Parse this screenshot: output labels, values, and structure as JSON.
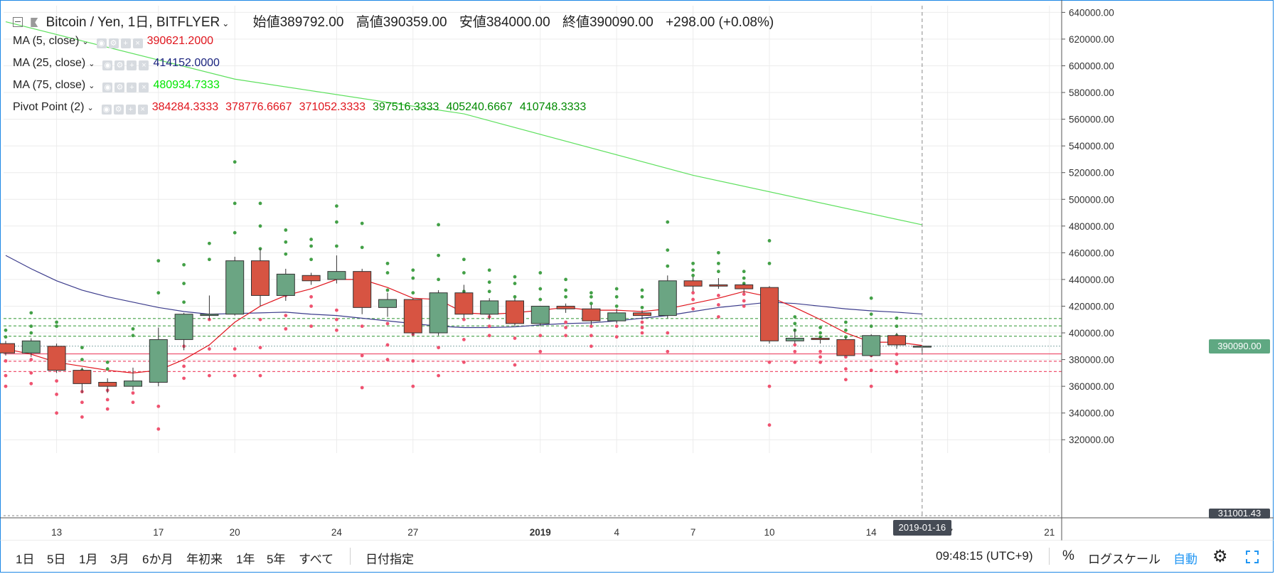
{
  "header": {
    "symbol": "Bitcoin / Yen, 1日, BITFLYER",
    "open_label": "始値",
    "open": "389792.00",
    "high_label": "高値",
    "high": "390359.00",
    "low_label": "安値",
    "low": "384000.00",
    "close_label": "終値",
    "close": "390090.00",
    "change": "+298.00 (+0.08%)"
  },
  "indicators": [
    {
      "label": "MA (5, close)",
      "values": [
        "390621.2000"
      ],
      "colors": [
        "#e0151d"
      ]
    },
    {
      "label": "MA (25, close)",
      "values": [
        "414152.0000"
      ],
      "colors": [
        "#1a237e"
      ]
    },
    {
      "label": "MA (75, close)",
      "values": [
        "480934.7333"
      ],
      "colors": [
        "#00e600"
      ]
    },
    {
      "label": "Pivot Point (2)",
      "values": [
        "384284.3333",
        "378776.6667",
        "371052.3333",
        "397516.3333",
        "405240.6667",
        "410748.3333"
      ],
      "colors": [
        "#e0151d",
        "#e0151d",
        "#e0151d",
        "#008a00",
        "#008a00",
        "#008a00"
      ]
    }
  ],
  "price_labels": {
    "current": "390090.00",
    "bottom": "311001.43",
    "crosshair_date": "2019-01-16"
  },
  "bottom_bar": {
    "ranges": [
      "1日",
      "5日",
      "1月",
      "3月",
      "6か月",
      "年初来",
      "1年",
      "5年",
      "すべて"
    ],
    "date_picker": "日付指定",
    "clock": "09:48:15 (UTC+9)",
    "percent": "%",
    "log_scale": "ログスケール",
    "auto": "自動"
  },
  "colors": {
    "up": "#6ba583",
    "down": "#d75442",
    "ma5": "#e0151d",
    "ma25": "#3c3c8c",
    "ma75": "#5ee05e",
    "pivot_resistance": "#43a047",
    "pivot_support": "#ef5370",
    "accent": "#2196f3"
  },
  "chart_data": {
    "type": "candlestick",
    "y_ticks": [
      320000,
      340000,
      360000,
      380000,
      400000,
      420000,
      440000,
      460000,
      480000,
      500000,
      520000,
      540000,
      560000,
      580000,
      600000,
      620000,
      640000
    ],
    "y_tick_labels": [
      "320000.00",
      "340000.00",
      "360000.00",
      "380000.00",
      "400000.00",
      "420000.00",
      "440000.00",
      "460000.00",
      "480000.00",
      "500000.00",
      "520000.00",
      "540000.00",
      "560000.00",
      "580000.00",
      "600000.00",
      "620000.00",
      "640000.00"
    ],
    "ylim": [
      310000,
      645000
    ],
    "x_ticks": [
      {
        "index": 2,
        "label": "13"
      },
      {
        "index": 6,
        "label": "17"
      },
      {
        "index": 9,
        "label": "20"
      },
      {
        "index": 13,
        "label": "24"
      },
      {
        "index": 16,
        "label": "27"
      },
      {
        "index": 21,
        "label": "2019"
      },
      {
        "index": 24,
        "label": "4"
      },
      {
        "index": 27,
        "label": "7"
      },
      {
        "index": 30,
        "label": "10"
      },
      {
        "index": 34,
        "label": "14"
      },
      {
        "index": 37,
        "label": "17"
      },
      {
        "index": 41,
        "label": "21"
      }
    ],
    "candles": [
      {
        "o": 392000,
        "h": 394000,
        "l": 383000,
        "c": 385000
      },
      {
        "o": 385000,
        "h": 396000,
        "l": 382000,
        "c": 394000
      },
      {
        "o": 390000,
        "h": 392000,
        "l": 370000,
        "c": 372000
      },
      {
        "o": 372000,
        "h": 374000,
        "l": 355000,
        "c": 362000
      },
      {
        "o": 363000,
        "h": 366000,
        "l": 355000,
        "c": 360000
      },
      {
        "o": 360000,
        "h": 374000,
        "l": 357000,
        "c": 364000
      },
      {
        "o": 363000,
        "h": 404000,
        "l": 360000,
        "c": 395000
      },
      {
        "o": 395000,
        "h": 415000,
        "l": 387000,
        "c": 414000
      },
      {
        "o": 413000,
        "h": 428000,
        "l": 410000,
        "c": 414000
      },
      {
        "o": 414000,
        "h": 457000,
        "l": 413000,
        "c": 454000
      },
      {
        "o": 454000,
        "h": 463000,
        "l": 420000,
        "c": 428000
      },
      {
        "o": 428000,
        "h": 448000,
        "l": 424000,
        "c": 444000
      },
      {
        "o": 443000,
        "h": 445000,
        "l": 436000,
        "c": 439000
      },
      {
        "o": 440000,
        "h": 458000,
        "l": 437000,
        "c": 446000
      },
      {
        "o": 446000,
        "h": 448000,
        "l": 414000,
        "c": 419000
      },
      {
        "o": 419000,
        "h": 430000,
        "l": 412000,
        "c": 425000
      },
      {
        "o": 425000,
        "h": 426000,
        "l": 398000,
        "c": 400000
      },
      {
        "o": 400000,
        "h": 432000,
        "l": 398000,
        "c": 430000
      },
      {
        "o": 430000,
        "h": 436000,
        "l": 411000,
        "c": 414000
      },
      {
        "o": 414000,
        "h": 426000,
        "l": 410000,
        "c": 424000
      },
      {
        "o": 424000,
        "h": 426000,
        "l": 405000,
        "c": 407000
      },
      {
        "o": 407000,
        "h": 420000,
        "l": 405000,
        "c": 420000
      },
      {
        "o": 420000,
        "h": 422000,
        "l": 415000,
        "c": 418000
      },
      {
        "o": 418000,
        "h": 421000,
        "l": 406000,
        "c": 409000
      },
      {
        "o": 409000,
        "h": 418000,
        "l": 407000,
        "c": 415000
      },
      {
        "o": 415000,
        "h": 417000,
        "l": 410000,
        "c": 413000
      },
      {
        "o": 413000,
        "h": 443000,
        "l": 411000,
        "c": 439000
      },
      {
        "o": 439000,
        "h": 442000,
        "l": 431000,
        "c": 435000
      },
      {
        "o": 436000,
        "h": 441000,
        "l": 433000,
        "c": 435000
      },
      {
        "o": 436000,
        "h": 437000,
        "l": 430000,
        "c": 433000
      },
      {
        "o": 434000,
        "h": 435000,
        "l": 392000,
        "c": 394000
      },
      {
        "o": 394000,
        "h": 403000,
        "l": 392000,
        "c": 396000
      },
      {
        "o": 396000,
        "h": 397000,
        "l": 392000,
        "c": 395000
      },
      {
        "o": 395000,
        "h": 397000,
        "l": 383000,
        "c": 383000
      },
      {
        "o": 383000,
        "h": 399000,
        "l": 382000,
        "c": 398000
      },
      {
        "o": 398000,
        "h": 400000,
        "l": 388000,
        "c": 391000
      },
      {
        "o": 389792,
        "h": 390359,
        "l": 384000,
        "c": 390090
      }
    ],
    "pivots": [
      {
        "r": [
          402000,
          397000
        ],
        "s": [
          379000,
          368000,
          360000
        ]
      },
      {
        "r": [
          415000,
          405000,
          400000
        ],
        "s": [
          380000,
          370000,
          362000
        ]
      },
      {
        "r": [
          408000,
          405000
        ],
        "s": [
          364000,
          354000,
          340000
        ]
      },
      {
        "r": [
          389000,
          380000,
          372000
        ],
        "s": [
          356000,
          348000,
          337000
        ]
      },
      {
        "r": [
          378000,
          373000
        ],
        "s": [
          357000,
          350000,
          343000
        ]
      },
      {
        "r": [
          403000,
          398000
        ],
        "s": [
          355000,
          348000
        ]
      },
      {
        "r": [
          454000,
          430000
        ],
        "s": [
          371000,
          345000,
          328000
        ]
      },
      {
        "r": [
          451000,
          437000,
          423000
        ],
        "s": [
          390000,
          375000,
          366000
        ]
      },
      {
        "r": [
          467000,
          455000
        ],
        "s": [
          410000,
          388000,
          368000
        ]
      },
      {
        "r": [
          528000,
          497000,
          475000
        ],
        "s": [
          422000,
          388000,
          368000
        ]
      },
      {
        "r": [
          497000,
          480000,
          463000
        ],
        "s": [
          410000,
          389000,
          368000
        ]
      },
      {
        "r": [
          477000,
          468000,
          459000
        ],
        "s": [
          428000,
          413000,
          403000
        ]
      },
      {
        "r": [
          470000,
          465000,
          455000
        ],
        "s": [
          427000,
          420000,
          405000
        ]
      },
      {
        "r": [
          495000,
          483000,
          465000
        ],
        "s": [
          417000,
          410000,
          402000
        ]
      },
      {
        "r": [
          482000,
          464000,
          441000
        ],
        "s": [
          405000,
          383000,
          359000
        ]
      },
      {
        "r": [
          452000,
          445000,
          432000
        ],
        "s": [
          407000,
          391000,
          380000
        ]
      },
      {
        "r": [
          447000,
          441000,
          430000
        ],
        "s": [
          399000,
          379000,
          360000
        ]
      },
      {
        "r": [
          481000,
          458000,
          440000
        ],
        "s": [
          403000,
          389000,
          368000
        ]
      },
      {
        "r": [
          455000,
          445000,
          431000
        ],
        "s": [
          410000,
          395000,
          378000
        ]
      },
      {
        "r": [
          447000,
          438000,
          431000
        ],
        "s": [
          412000,
          405000,
          398000
        ]
      },
      {
        "r": [
          442000,
          437000,
          427000
        ],
        "s": [
          408000,
          396000,
          376000
        ]
      },
      {
        "r": [
          445000,
          433000,
          425000
        ],
        "s": [
          413000,
          398000,
          386000
        ]
      },
      {
        "r": [
          440000,
          432000,
          427000
        ],
        "s": [
          408000,
          404000,
          398000
        ]
      },
      {
        "r": [
          430000,
          427000,
          422000
        ],
        "s": [
          405000,
          398000,
          390000
        ]
      },
      {
        "r": [
          433000,
          427000,
          420000
        ],
        "s": [
          410000,
          405000,
          397000
        ]
      },
      {
        "r": [
          432000,
          427000,
          419000
        ],
        "s": [
          408000,
          404000,
          400000
        ]
      },
      {
        "r": [
          483000,
          462000,
          450000
        ],
        "s": [
          418000,
          400000,
          386000
        ]
      },
      {
        "r": [
          452000,
          447000,
          443000
        ],
        "s": [
          430000,
          425000,
          418000
        ]
      },
      {
        "r": [
          460000,
          452000,
          446000
        ],
        "s": [
          428000,
          421000,
          412000
        ]
      },
      {
        "r": [
          446000,
          441000,
          437000
        ],
        "s": [
          429000,
          424000,
          420000
        ]
      },
      {
        "r": [
          469000,
          452000,
          423000
        ],
        "s": [
          378000,
          360000,
          331000
        ]
      },
      {
        "r": [
          412000,
          407000,
          402000
        ],
        "s": [
          391000,
          386000,
          378000
        ]
      },
      {
        "r": [
          404000,
          400000,
          397000
        ],
        "s": [
          386000,
          382000,
          378000
        ]
      },
      {
        "r": [
          408000,
          402000,
          397000
        ],
        "s": [
          382000,
          373000,
          365000
        ]
      },
      {
        "r": [
          426000,
          414000,
          405000
        ],
        "s": [
          383000,
          372000,
          360000
        ]
      },
      {
        "r": [
          411000,
          405000,
          398000
        ],
        "s": [
          384000,
          377000,
          371000
        ]
      }
    ],
    "ma5": [
      [
        0,
        388000
      ],
      [
        1,
        384000
      ],
      [
        2,
        378000
      ],
      [
        3,
        375000
      ],
      [
        4,
        372000
      ],
      [
        5,
        370000
      ],
      [
        6,
        372000
      ],
      [
        7,
        380000
      ],
      [
        8,
        391000
      ],
      [
        9,
        408000
      ],
      [
        10,
        420000
      ],
      [
        11,
        428000
      ],
      [
        12,
        433000
      ],
      [
        13,
        440000
      ],
      [
        14,
        440000
      ],
      [
        15,
        434000
      ],
      [
        16,
        426000
      ],
      [
        17,
        425000
      ],
      [
        18,
        415000
      ],
      [
        19,
        414000
      ],
      [
        20,
        415000
      ],
      [
        21,
        417000
      ],
      [
        22,
        419000
      ],
      [
        23,
        417000
      ],
      [
        24,
        417000
      ],
      [
        25,
        416000
      ],
      [
        26,
        418000
      ],
      [
        27,
        422000
      ],
      [
        28,
        426000
      ],
      [
        29,
        431000
      ],
      [
        30,
        427000
      ],
      [
        31,
        419000
      ],
      [
        32,
        410000
      ],
      [
        33,
        400000
      ],
      [
        34,
        393000
      ],
      [
        35,
        393000
      ],
      [
        36,
        390621
      ]
    ],
    "ma25": [
      [
        0,
        458000
      ],
      [
        1,
        448000
      ],
      [
        2,
        439000
      ],
      [
        3,
        432000
      ],
      [
        4,
        427000
      ],
      [
        5,
        423000
      ],
      [
        6,
        419000
      ],
      [
        7,
        416000
      ],
      [
        8,
        414000
      ],
      [
        9,
        414500
      ],
      [
        10,
        415000
      ],
      [
        11,
        415500
      ],
      [
        12,
        414000
      ],
      [
        13,
        413000
      ],
      [
        14,
        411000
      ],
      [
        15,
        409000
      ],
      [
        16,
        407000
      ],
      [
        17,
        405000
      ],
      [
        18,
        404000
      ],
      [
        19,
        404000
      ],
      [
        20,
        404500
      ],
      [
        21,
        406000
      ],
      [
        22,
        407000
      ],
      [
        23,
        407500
      ],
      [
        24,
        409000
      ],
      [
        25,
        411000
      ],
      [
        26,
        413000
      ],
      [
        27,
        416000
      ],
      [
        28,
        419000
      ],
      [
        29,
        421000
      ],
      [
        30,
        423000
      ],
      [
        31,
        422000
      ],
      [
        32,
        420000
      ],
      [
        33,
        418000
      ],
      [
        34,
        416500
      ],
      [
        35,
        415500
      ],
      [
        36,
        414152
      ]
    ],
    "ma75": [
      [
        0,
        633000
      ],
      [
        9,
        590000
      ],
      [
        18,
        564000
      ],
      [
        27,
        518000
      ],
      [
        36,
        480934
      ]
    ],
    "pivot_levels": [
      {
        "value": 410748.3333,
        "kind": "resistance"
      },
      {
        "value": 405240.6667,
        "kind": "resistance"
      },
      {
        "value": 397516.3333,
        "kind": "resistance"
      },
      {
        "value": 390090,
        "kind": "last"
      },
      {
        "value": 384284.3333,
        "kind": "pivot"
      },
      {
        "value": 378776.6667,
        "kind": "support"
      },
      {
        "value": 371052.3333,
        "kind": "support"
      }
    ]
  }
}
